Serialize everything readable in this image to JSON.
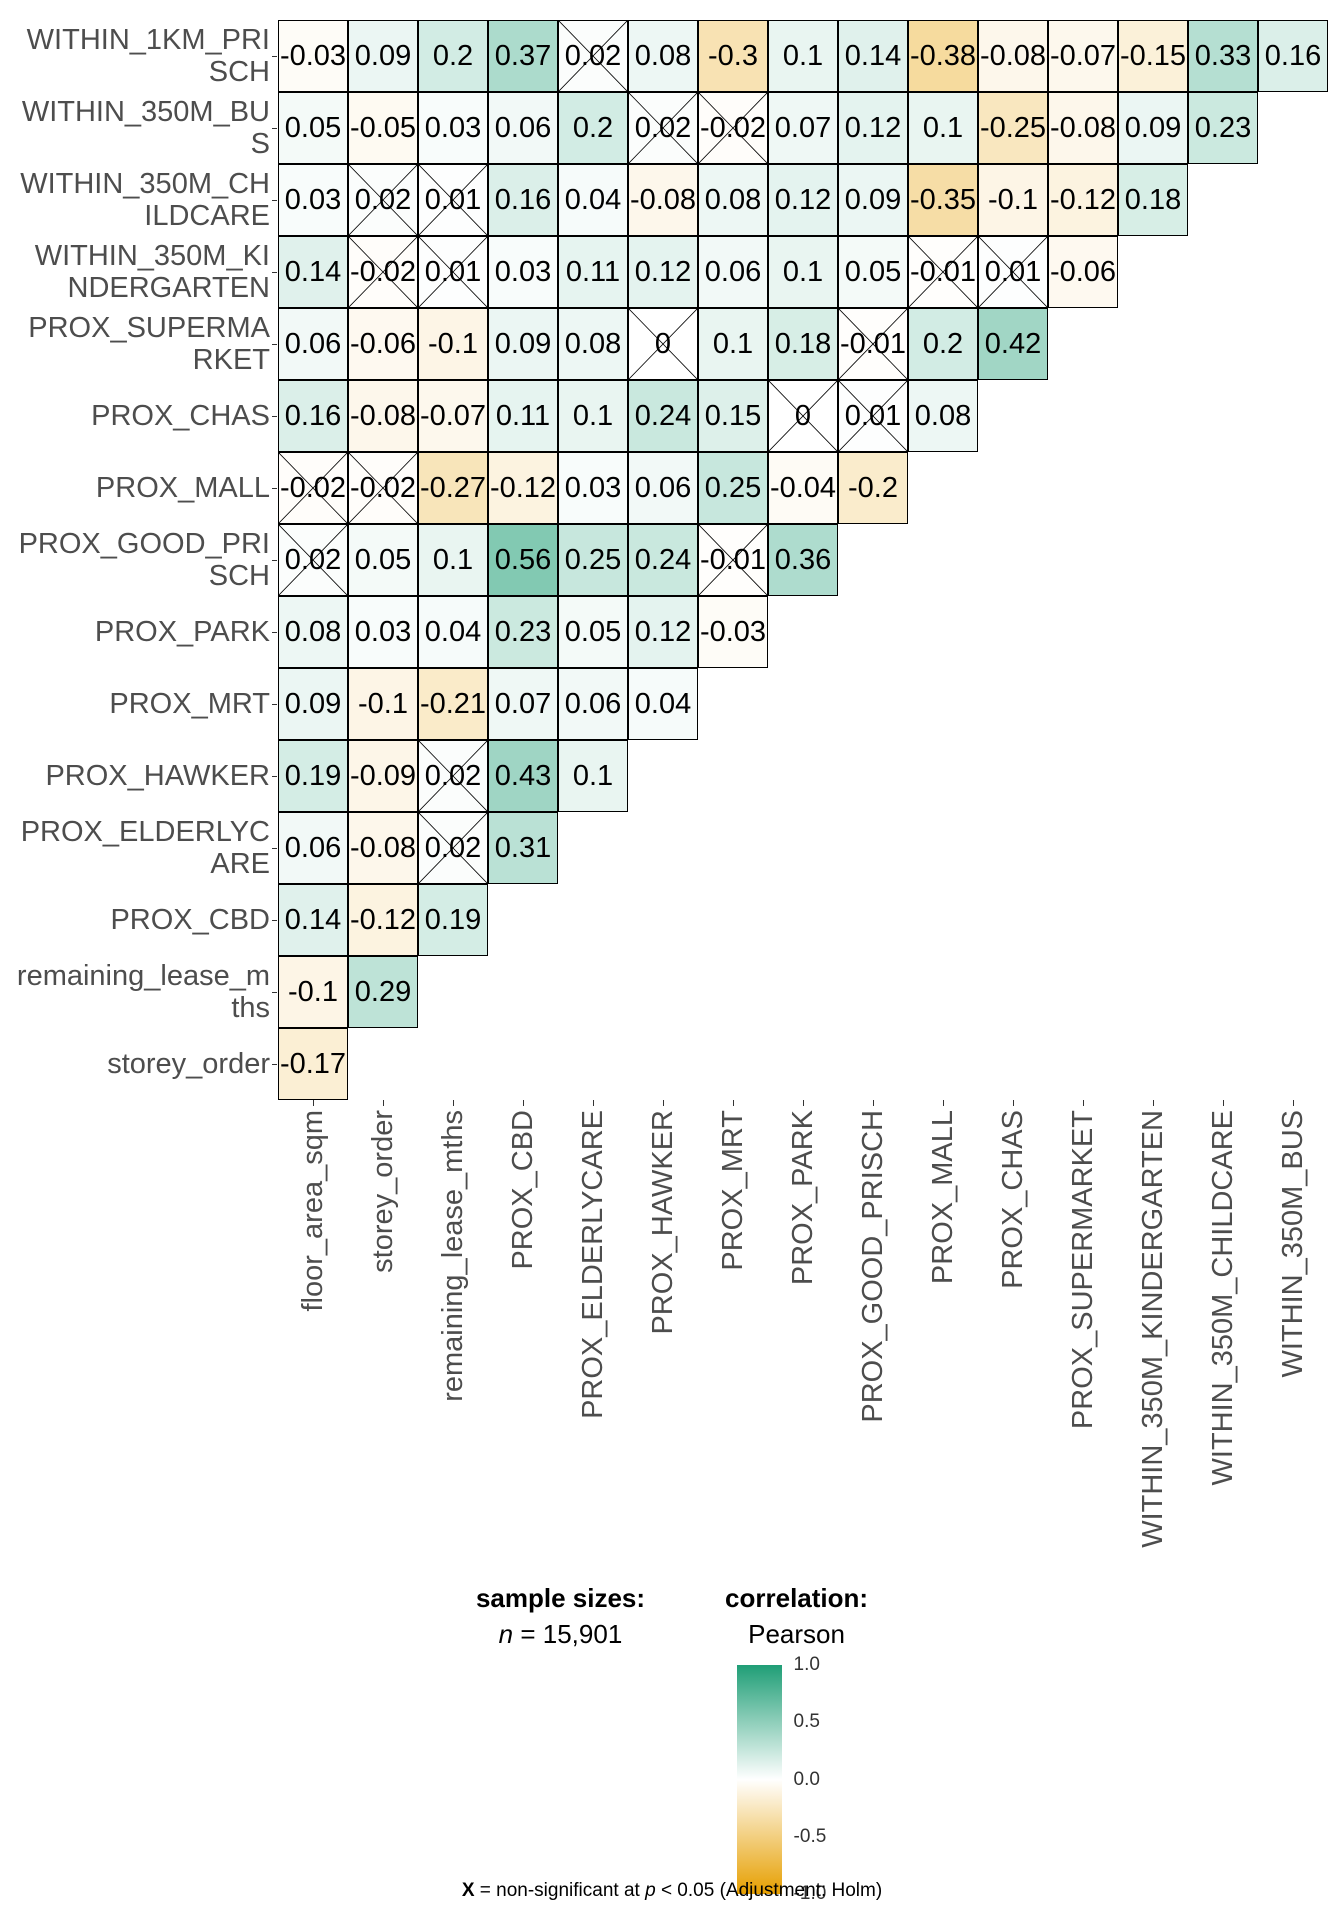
{
  "chart_data": {
    "type": "heatmap",
    "title": "",
    "variables_rows": [
      "WITHIN_1KM_PRISCH",
      "WITHIN_350M_BUS",
      "WITHIN_350M_CHILDCARE",
      "WITHIN_350M_KINDERGARTEN",
      "PROX_SUPERMARKET",
      "PROX_CHAS",
      "PROX_MALL",
      "PROX_GOOD_PRISCH",
      "PROX_PARK",
      "PROX_MRT",
      "PROX_HAWKER",
      "PROX_ELDERLYCARE",
      "PROX_CBD",
      "remaining_lease_mths",
      "storey_order"
    ],
    "variables_cols": [
      "floor_area_sqm",
      "storey_order",
      "remaining_lease_mths",
      "PROX_CBD",
      "PROX_ELDERLYCARE",
      "PROX_HAWKER",
      "PROX_MRT",
      "PROX_PARK",
      "PROX_GOOD_PRISCH",
      "PROX_MALL",
      "PROX_CHAS",
      "PROX_SUPERMARKET",
      "WITHIN_350M_KINDERGARTEN",
      "WITHIN_350M_CHILDCARE",
      "WITHIN_350M_BUS"
    ],
    "values": [
      [
        -0.03,
        0.09,
        0.2,
        0.37,
        0.02,
        0.08,
        -0.3,
        0.1,
        0.14,
        -0.38,
        -0.08,
        -0.07,
        -0.15,
        0.33,
        0.16
      ],
      [
        0.05,
        -0.05,
        0.03,
        0.06,
        0.2,
        0.02,
        -0.02,
        0.07,
        0.12,
        0.1,
        -0.25,
        -0.08,
        0.09,
        0.23
      ],
      [
        0.03,
        0.02,
        0.01,
        0.16,
        0.04,
        -0.08,
        0.08,
        0.12,
        0.09,
        -0.35,
        -0.1,
        -0.12,
        0.18
      ],
      [
        0.14,
        -0.02,
        0.01,
        0.03,
        0.11,
        0.12,
        0.06,
        0.1,
        0.05,
        -0.01,
        0.01,
        -0.06
      ],
      [
        0.06,
        -0.06,
        -0.1,
        0.09,
        0.08,
        0,
        0.1,
        0.18,
        -0.01,
        0.2,
        0.42
      ],
      [
        0.16,
        -0.08,
        -0.07,
        0.11,
        0.1,
        0.24,
        0.15,
        0,
        0.01,
        0.08
      ],
      [
        -0.02,
        -0.02,
        -0.27,
        -0.12,
        0.03,
        0.06,
        0.25,
        -0.04,
        -0.2
      ],
      [
        0.02,
        0.05,
        0.1,
        0.56,
        0.25,
        0.24,
        -0.01,
        0.36
      ],
      [
        0.08,
        0.03,
        0.04,
        0.23,
        0.05,
        0.12,
        -0.03
      ],
      [
        0.09,
        -0.1,
        -0.21,
        0.07,
        0.06,
        0.04
      ],
      [
        0.19,
        -0.09,
        0.02,
        0.43,
        0.1
      ],
      [
        0.06,
        -0.08,
        0.02,
        0.31
      ],
      [
        0.14,
        -0.12,
        0.19
      ],
      [
        -0.1,
        0.29
      ],
      [
        -0.17
      ]
    ],
    "significance_threshold": 0.02,
    "colorscale": {
      "low": "#E69F00",
      "mid": "#FFFFFF",
      "high": "#009E73",
      "range": [
        -1,
        1
      ]
    },
    "legend": {
      "sample_title": "sample sizes:",
      "n_label": "n",
      "n_value": "= 15,901",
      "corr_title": "correlation:",
      "method": "Pearson",
      "ticks": [
        "1.0",
        "0.5",
        "0.0",
        "-0.5",
        "-1.0"
      ],
      "placement": "right"
    },
    "caption": {
      "mark": "X",
      "text": "= non-significant at",
      "p": "p",
      "rest": "< 0.05 (Adjustment: Holm)"
    }
  }
}
